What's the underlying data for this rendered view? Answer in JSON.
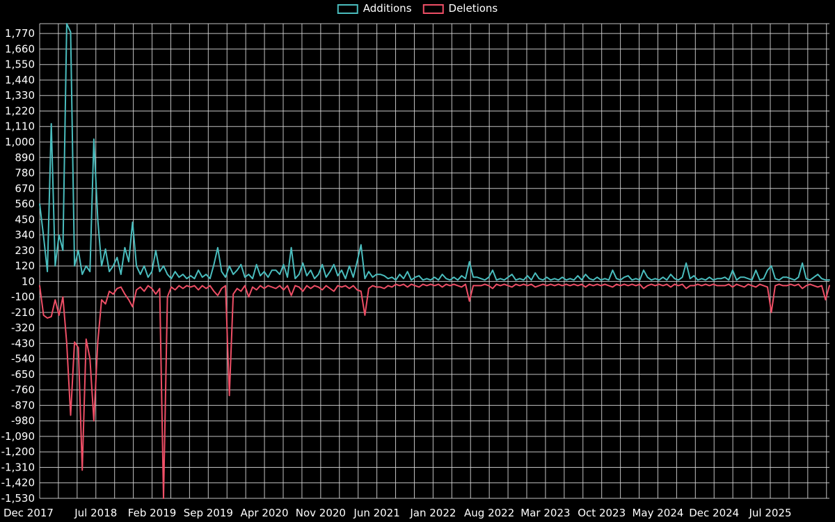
{
  "page": {
    "background": "#000000",
    "grid_color": "#d8d8d8",
    "axis_text_color": "#ffffff"
  },
  "legend": {
    "items": [
      {
        "label": "Additions",
        "color": "#4abdbe"
      },
      {
        "label": "Deletions",
        "color": "#ef4f66"
      }
    ]
  },
  "chart_data": {
    "type": "line",
    "title": "",
    "xlabel": "",
    "ylabel": "",
    "grid": true,
    "legend_position": "top-center",
    "background": "#000000",
    "ylim": [
      -1530,
      1840
    ],
    "y_tick_step": 110,
    "y_tick_labels": [
      "1,770",
      "1,660",
      "1,550",
      "1,440",
      "1,330",
      "1,220",
      "1,110",
      "1,000",
      "890",
      "780",
      "670",
      "560",
      "450",
      "340",
      "230",
      "120",
      "10",
      "-100",
      "-210",
      "-320",
      "-430",
      "-540",
      "-650",
      "-760",
      "-870",
      "-980",
      "-1,090",
      "-1,200",
      "-1,310",
      "-1,420",
      "-1,530"
    ],
    "x_tick_labels": [
      "Dec 2017",
      "Jul 2018",
      "Feb 2019",
      "Sep 2019",
      "Apr 2020",
      "Nov 2020",
      "Jun 2021",
      "Jan 2022",
      "Aug 2022",
      "Mar 2023",
      "Oct 2023",
      "May 2024",
      "Dec 2024",
      "Jul 2025"
    ],
    "series": [
      {
        "name": "Additions",
        "color": "#4abdbe",
        "values": [
          560,
          330,
          80,
          1130,
          120,
          340,
          230,
          1840,
          1780,
          120,
          230,
          60,
          120,
          80,
          1020,
          450,
          120,
          240,
          80,
          120,
          180,
          60,
          250,
          150,
          430,
          120,
          60,
          120,
          40,
          80,
          230,
          80,
          120,
          60,
          30,
          80,
          40,
          60,
          30,
          50,
          30,
          90,
          40,
          60,
          30,
          130,
          250,
          80,
          40,
          120,
          60,
          90,
          130,
          40,
          60,
          30,
          130,
          50,
          80,
          40,
          90,
          90,
          60,
          130,
          40,
          250,
          30,
          60,
          140,
          50,
          90,
          30,
          60,
          130,
          40,
          80,
          130,
          50,
          90,
          30,
          120,
          40,
          150,
          270,
          30,
          80,
          40,
          60,
          60,
          50,
          30,
          40,
          20,
          60,
          30,
          80,
          20,
          40,
          50,
          20,
          30,
          20,
          40,
          20,
          60,
          30,
          20,
          40,
          20,
          50,
          30,
          150,
          40,
          40,
          30,
          20,
          40,
          90,
          20,
          30,
          20,
          40,
          60,
          20,
          30,
          20,
          50,
          20,
          70,
          30,
          20,
          40,
          20,
          30,
          20,
          40,
          20,
          30,
          20,
          50,
          20,
          60,
          30,
          20,
          40,
          20,
          30,
          20,
          90,
          30,
          20,
          40,
          50,
          20,
          30,
          20,
          90,
          40,
          20,
          30,
          20,
          40,
          20,
          60,
          30,
          20,
          40,
          140,
          30,
          50,
          20,
          30,
          20,
          40,
          20,
          30,
          30,
          40,
          20,
          90,
          20,
          40,
          40,
          30,
          20,
          90,
          20,
          30,
          90,
          120,
          30,
          20,
          40,
          40,
          30,
          20,
          40,
          140,
          30,
          20,
          40,
          60,
          30,
          20,
          20
        ]
      },
      {
        "name": "Deletions",
        "color": "#ef4f66",
        "values": [
          -20,
          -230,
          -250,
          -240,
          -120,
          -230,
          -100,
          -430,
          -940,
          -420,
          -460,
          -1330,
          -400,
          -540,
          -980,
          -420,
          -120,
          -150,
          -60,
          -80,
          -40,
          -30,
          -80,
          -120,
          -170,
          -50,
          -30,
          -60,
          -20,
          -40,
          -80,
          -40,
          -1530,
          -100,
          -30,
          -50,
          -20,
          -40,
          -20,
          -30,
          -20,
          -50,
          -20,
          -40,
          -20,
          -60,
          -90,
          -40,
          -20,
          -800,
          -80,
          -40,
          -60,
          -20,
          -100,
          -30,
          -50,
          -20,
          -40,
          -20,
          -30,
          -40,
          -20,
          -50,
          -20,
          -90,
          -20,
          -30,
          -60,
          -20,
          -40,
          -20,
          -30,
          -50,
          -20,
          -40,
          -60,
          -20,
          -30,
          -20,
          -40,
          -20,
          -50,
          -60,
          -230,
          -40,
          -20,
          -30,
          -30,
          -40,
          -20,
          -30,
          -10,
          -20,
          -10,
          -30,
          -10,
          -20,
          -30,
          -10,
          -20,
          -10,
          -20,
          -10,
          -30,
          -10,
          -20,
          -10,
          -20,
          -30,
          -10,
          -130,
          -20,
          -20,
          -20,
          -10,
          -20,
          -40,
          -10,
          -20,
          -10,
          -20,
          -30,
          -10,
          -20,
          -10,
          -20,
          -10,
          -30,
          -20,
          -10,
          -20,
          -10,
          -20,
          -10,
          -20,
          -10,
          -20,
          -10,
          -20,
          -10,
          -30,
          -10,
          -20,
          -10,
          -20,
          -10,
          -20,
          -30,
          -10,
          -20,
          -10,
          -20,
          -10,
          -20,
          -10,
          -40,
          -20,
          -10,
          -20,
          -10,
          -20,
          -10,
          -30,
          -10,
          -20,
          -10,
          -40,
          -20,
          -20,
          -10,
          -20,
          -10,
          -20,
          -10,
          -20,
          -20,
          -20,
          -10,
          -30,
          -10,
          -20,
          -30,
          -10,
          -20,
          -30,
          -10,
          -20,
          -30,
          -210,
          -20,
          -10,
          -20,
          -20,
          -10,
          -20,
          -10,
          -40,
          -20,
          -10,
          -20,
          -30,
          -20,
          -120,
          -20
        ]
      }
    ]
  }
}
